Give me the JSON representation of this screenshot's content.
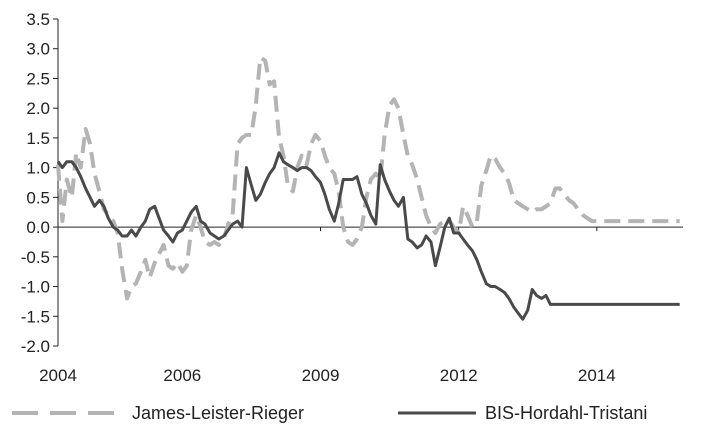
{
  "chart_data": {
    "type": "line",
    "title": "",
    "xlabel": "",
    "ylabel": "",
    "ylim": [
      -2.0,
      3.5
    ],
    "xlim": [
      2004.0,
      2015.4
    ],
    "y_ticks": [
      "3.5",
      "3.0",
      "2.5",
      "2.0",
      "1.5",
      "1.0",
      "0.5",
      "0.0",
      "-0.5",
      "-1.0",
      "-1.5",
      "-2.0"
    ],
    "y_tick_values": [
      3.5,
      3.0,
      2.5,
      2.0,
      1.5,
      1.0,
      0.5,
      0.0,
      -0.5,
      -1.0,
      -1.5,
      -2.0
    ],
    "x_ticks": [
      "2004",
      "2006",
      "2009",
      "2012",
      "2014"
    ],
    "x_tick_values": [
      2004.0,
      2006.25,
      2008.75,
      2011.25,
      2013.75
    ],
    "grid": false,
    "legend_position": "bottom",
    "series": [
      {
        "name": "James-Leister-Rieger",
        "color": "#b4b4b4",
        "style": "dashed",
        "x": [
          2004.0,
          2004.08,
          2004.16,
          2004.25,
          2004.33,
          2004.41,
          2004.5,
          2004.58,
          2004.66,
          2004.75,
          2004.83,
          2004.91,
          2005.0,
          2005.08,
          2005.16,
          2005.25,
          2005.33,
          2005.41,
          2005.5,
          2005.58,
          2005.66,
          2005.75,
          2005.83,
          2005.91,
          2006.0,
          2006.08,
          2006.16,
          2006.25,
          2006.33,
          2006.41,
          2006.5,
          2006.58,
          2006.66,
          2006.75,
          2006.83,
          2006.91,
          2007.0,
          2007.08,
          2007.16,
          2007.25,
          2007.33,
          2007.41,
          2007.5,
          2007.58,
          2007.66,
          2007.75,
          2007.83,
          2007.91,
          2008.0,
          2008.08,
          2008.16,
          2008.25,
          2008.33,
          2008.41,
          2008.5,
          2008.58,
          2008.66,
          2008.75,
          2008.83,
          2008.91,
          2009.0,
          2009.08,
          2009.16,
          2009.25,
          2009.33,
          2009.41,
          2009.5,
          2009.58,
          2009.66,
          2009.75,
          2009.83,
          2009.91,
          2010.0,
          2010.08,
          2010.16,
          2010.25,
          2010.33,
          2010.41,
          2010.5,
          2010.58,
          2010.66,
          2010.75,
          2010.83,
          2010.91,
          2011.0,
          2011.08,
          2011.16,
          2011.25,
          2011.33,
          2011.41,
          2011.5,
          2011.58,
          2011.66,
          2011.75,
          2011.83,
          2011.91,
          2012.0,
          2012.08,
          2012.16,
          2012.25,
          2012.33,
          2012.41,
          2012.5,
          2012.58,
          2012.66,
          2012.75,
          2012.83,
          2012.91,
          2013.0,
          2013.08,
          2013.16,
          2013.25,
          2013.33,
          2013.41,
          2013.5,
          2013.58,
          2013.66,
          2013.75,
          2013.83,
          2013.91,
          2014.0,
          2014.08,
          2014.16,
          2014.25,
          2014.33,
          2014.41,
          2014.5,
          2014.58,
          2014.66,
          2014.75,
          2014.83,
          2014.91,
          2015.0,
          2015.08,
          2015.16,
          2015.25
        ],
        "y": [
          1.05,
          0.1,
          0.8,
          0.5,
          1.25,
          1.0,
          1.65,
          1.4,
          0.9,
          0.6,
          0.3,
          0.2,
          0.1,
          -0.1,
          -0.7,
          -1.2,
          -1.0,
          -0.95,
          -0.75,
          -0.55,
          -0.85,
          -0.6,
          -0.45,
          -0.3,
          -0.65,
          -0.7,
          -0.6,
          -0.75,
          -0.65,
          -0.05,
          0.2,
          0.0,
          -0.25,
          -0.3,
          -0.25,
          -0.3,
          -0.2,
          0.05,
          0.2,
          1.4,
          1.5,
          1.55,
          1.55,
          2.05,
          2.85,
          2.8,
          2.4,
          2.45,
          1.5,
          1.2,
          0.7,
          0.6,
          1.0,
          1.2,
          1.05,
          1.4,
          1.55,
          1.45,
          1.2,
          1.0,
          0.9,
          0.6,
          0.0,
          -0.25,
          -0.3,
          -0.2,
          0.0,
          0.5,
          0.8,
          0.9,
          0.8,
          1.55,
          2.05,
          2.15,
          2.0,
          1.55,
          1.2,
          1.05,
          0.8,
          0.5,
          0.2,
          0.0,
          -0.1,
          0.05,
          0.1,
          0.1,
          0.0,
          -0.1,
          0.35,
          0.2,
          0.0,
          0.1,
          0.7,
          0.95,
          1.2,
          1.15,
          1.0,
          0.9,
          0.75,
          0.45,
          0.4,
          0.35,
          0.3,
          0.25,
          0.3,
          0.3,
          0.35,
          0.4,
          0.65,
          0.65,
          0.55,
          0.45,
          0.4,
          0.3,
          0.2,
          0.15,
          0.1,
          0.1,
          0.1,
          0.1,
          0.1,
          0.1,
          0.1,
          0.1,
          0.1,
          0.1,
          0.1,
          0.1,
          0.1,
          0.1,
          0.1,
          0.1,
          0.1,
          0.1,
          0.1,
          0.1
        ]
      },
      {
        "name": "BIS-Hordahl-Tristani",
        "color": "#4a4a4a",
        "style": "solid",
        "x": [
          2004.0,
          2004.08,
          2004.16,
          2004.25,
          2004.33,
          2004.41,
          2004.5,
          2004.58,
          2004.66,
          2004.75,
          2004.83,
          2004.91,
          2005.0,
          2005.08,
          2005.16,
          2005.25,
          2005.33,
          2005.41,
          2005.5,
          2005.58,
          2005.66,
          2005.75,
          2005.83,
          2005.91,
          2006.0,
          2006.08,
          2006.16,
          2006.25,
          2006.33,
          2006.41,
          2006.5,
          2006.58,
          2006.66,
          2006.75,
          2006.83,
          2006.91,
          2007.0,
          2007.08,
          2007.16,
          2007.25,
          2007.33,
          2007.41,
          2007.5,
          2007.58,
          2007.66,
          2007.75,
          2007.83,
          2007.91,
          2008.0,
          2008.08,
          2008.16,
          2008.25,
          2008.33,
          2008.41,
          2008.5,
          2008.58,
          2008.66,
          2008.75,
          2008.83,
          2008.91,
          2009.0,
          2009.08,
          2009.16,
          2009.25,
          2009.33,
          2009.41,
          2009.5,
          2009.58,
          2009.66,
          2009.75,
          2009.83,
          2009.91,
          2010.0,
          2010.08,
          2010.16,
          2010.25,
          2010.33,
          2010.41,
          2010.5,
          2010.58,
          2010.66,
          2010.75,
          2010.83,
          2010.91,
          2011.0,
          2011.08,
          2011.16,
          2011.25,
          2011.33,
          2011.41,
          2011.5,
          2011.58,
          2011.66,
          2011.75,
          2011.83,
          2011.91,
          2012.0,
          2012.08,
          2012.16,
          2012.25,
          2012.33,
          2012.41,
          2012.5,
          2012.58,
          2012.66,
          2012.75,
          2012.83,
          2012.91,
          2013.0,
          2013.08,
          2013.16,
          2013.25,
          2013.33,
          2013.41,
          2013.5,
          2013.58,
          2013.66,
          2013.75,
          2013.83,
          2013.91,
          2014.0,
          2014.08,
          2014.16,
          2014.25,
          2014.33,
          2014.41,
          2014.5,
          2014.58,
          2014.66,
          2014.75,
          2014.83,
          2014.91,
          2015.0,
          2015.08,
          2015.16,
          2015.25
        ],
        "y": [
          1.1,
          1.0,
          1.1,
          1.1,
          1.0,
          0.85,
          0.65,
          0.5,
          0.35,
          0.45,
          0.35,
          0.15,
          0.0,
          -0.05,
          -0.15,
          -0.15,
          -0.05,
          -0.15,
          0.0,
          0.1,
          0.3,
          0.35,
          0.15,
          -0.05,
          -0.15,
          -0.25,
          -0.1,
          -0.05,
          0.1,
          0.25,
          0.35,
          0.1,
          0.05,
          -0.1,
          -0.15,
          -0.2,
          -0.15,
          -0.05,
          0.05,
          0.1,
          0.0,
          1.0,
          0.7,
          0.45,
          0.55,
          0.75,
          0.9,
          1.0,
          1.25,
          1.1,
          1.05,
          1.0,
          0.95,
          1.0,
          1.0,
          0.95,
          0.85,
          0.75,
          0.55,
          0.3,
          0.1,
          0.4,
          0.8,
          0.8,
          0.8,
          0.85,
          0.55,
          0.4,
          0.2,
          0.05,
          1.05,
          0.8,
          0.6,
          0.45,
          0.35,
          0.5,
          -0.2,
          -0.25,
          -0.35,
          -0.3,
          -0.15,
          -0.25,
          -0.65,
          -0.35,
          0.0,
          0.15,
          -0.1,
          -0.1,
          -0.2,
          -0.3,
          -0.4,
          -0.55,
          -0.75,
          -0.95,
          -1.0,
          -1.0,
          -1.05,
          -1.1,
          -1.2,
          -1.35,
          -1.45,
          -1.55,
          -1.4,
          -1.05,
          -1.15,
          -1.2,
          -1.15,
          -1.3,
          -1.3,
          -1.3,
          -1.3,
          -1.3,
          -1.3,
          -1.3,
          -1.3,
          -1.3,
          -1.3,
          -1.3,
          -1.3,
          -1.3,
          -1.3,
          -1.3,
          -1.3,
          -1.3,
          -1.3,
          -1.3,
          -1.3,
          -1.3,
          -1.3,
          -1.3,
          -1.3,
          -1.3,
          -1.3,
          -1.3,
          -1.3,
          -1.3
        ]
      }
    ]
  }
}
